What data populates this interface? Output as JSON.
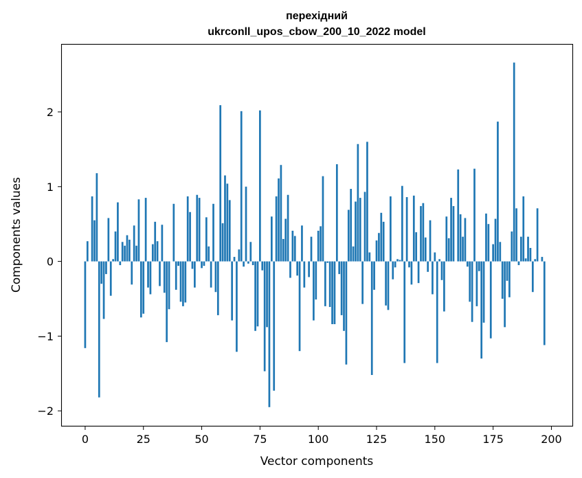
{
  "chart_data": {
    "type": "bar",
    "title_line1": "перехідний",
    "title_line2": "ukrconll_upos_cbow_200_10_2022 model",
    "xlabel": "Vector components",
    "ylabel": "Components values",
    "xlim": [
      -10,
      209
    ],
    "ylim": [
      -2.2,
      2.9
    ],
    "xticks": [
      0,
      25,
      50,
      75,
      100,
      125,
      150,
      175,
      200
    ],
    "yticks": [
      -2,
      -1,
      0,
      1,
      2
    ],
    "ytick_labels": [
      "−2",
      "−1",
      "0",
      "1",
      "2"
    ],
    "grid": false,
    "bar_color": "#1f77b4",
    "values": [
      -1.16,
      0.27,
      0.0,
      0.87,
      0.55,
      1.18,
      -1.82,
      -0.3,
      -0.77,
      -0.17,
      0.58,
      -0.46,
      0.03,
      0.4,
      0.79,
      -0.05,
      0.26,
      0.21,
      0.35,
      0.29,
      -0.31,
      0.48,
      0.21,
      0.83,
      -0.75,
      -0.7,
      0.85,
      -0.35,
      -0.44,
      0.23,
      0.53,
      0.27,
      -0.33,
      0.49,
      -0.42,
      -1.08,
      -0.64,
      0.0,
      0.77,
      -0.38,
      -0.06,
      -0.54,
      -0.6,
      -0.55,
      0.87,
      0.66,
      -0.1,
      -0.35,
      0.89,
      0.85,
      -0.09,
      -0.06,
      0.59,
      0.2,
      -0.35,
      0.77,
      -0.41,
      -0.72,
      2.09,
      0.51,
      1.15,
      1.04,
      0.82,
      -0.79,
      0.06,
      -1.21,
      0.16,
      2.01,
      -0.07,
      1.0,
      -0.03,
      0.26,
      -0.05,
      -0.93,
      -0.87,
      2.02,
      -0.12,
      -1.47,
      -0.88,
      -1.95,
      0.6,
      -1.73,
      0.87,
      1.11,
      1.29,
      0.3,
      0.57,
      0.89,
      -0.22,
      0.41,
      0.34,
      -0.19,
      -1.2,
      0.48,
      -0.35,
      0.0,
      -0.21,
      0.33,
      -0.79,
      -0.51,
      0.41,
      0.47,
      1.14,
      -0.6,
      -0.02,
      -0.61,
      -0.84,
      -0.84,
      1.3,
      -0.17,
      -0.72,
      -0.93,
      -1.38,
      0.69,
      0.97,
      0.2,
      0.8,
      1.57,
      0.85,
      -0.57,
      0.93,
      1.6,
      0.12,
      -1.52,
      -0.38,
      0.28,
      0.38,
      0.65,
      0.53,
      -0.59,
      -0.65,
      0.87,
      -0.24,
      -0.08,
      0.03,
      0.02,
      1.01,
      -1.36,
      0.86,
      -0.08,
      -0.31,
      0.88,
      0.39,
      -0.29,
      0.74,
      0.78,
      0.32,
      -0.14,
      0.55,
      -0.44,
      0.12,
      -1.36,
      0.03,
      -0.25,
      -0.67,
      0.6,
      0.31,
      0.85,
      0.74,
      0.0,
      1.23,
      0.63,
      0.33,
      0.58,
      -0.07,
      -0.54,
      -0.81,
      1.24,
      -0.6,
      -0.13,
      -1.3,
      -0.82,
      0.64,
      0.5,
      -1.03,
      0.23,
      0.57,
      1.87,
      0.26,
      -0.5,
      -0.88,
      -0.26,
      -0.48,
      0.4,
      2.66,
      0.71,
      -0.05,
      0.33,
      0.87,
      0.04,
      0.33,
      0.18,
      -0.41,
      0.03,
      0.71,
      0.0,
      0.06,
      -1.12
    ]
  }
}
